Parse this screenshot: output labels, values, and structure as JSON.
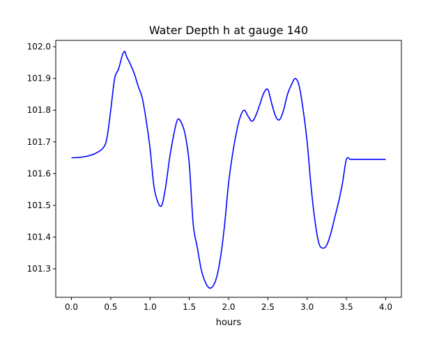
{
  "chart_data": {
    "type": "line",
    "title": "Water Depth h at gauge 140",
    "xlabel": "hours",
    "ylabel": "",
    "xlim": [
      -0.2,
      4.2
    ],
    "ylim": [
      101.21,
      102.02
    ],
    "xticks": [
      0.0,
      0.5,
      1.0,
      1.5,
      2.0,
      2.5,
      3.0,
      3.5,
      4.0
    ],
    "xtick_labels": [
      "0.0",
      "0.5",
      "1.0",
      "1.5",
      "2.0",
      "2.5",
      "3.0",
      "3.5",
      "4.0"
    ],
    "yticks": [
      101.3,
      101.4,
      101.5,
      101.6,
      101.7,
      101.8,
      101.9,
      102.0
    ],
    "ytick_labels": [
      "101.3",
      "101.4",
      "101.5",
      "101.6",
      "101.7",
      "101.8",
      "101.9",
      "102.0"
    ],
    "grid": false,
    "series": [
      {
        "color": "#0000ff",
        "x": [
          0.0,
          0.1,
          0.2,
          0.3,
          0.4,
          0.45,
          0.5,
          0.55,
          0.6,
          0.65,
          0.68,
          0.7,
          0.75,
          0.8,
          0.85,
          0.9,
          0.95,
          1.0,
          1.05,
          1.1,
          1.15,
          1.2,
          1.25,
          1.3,
          1.35,
          1.4,
          1.45,
          1.5,
          1.55,
          1.6,
          1.65,
          1.7,
          1.75,
          1.8,
          1.85,
          1.9,
          1.95,
          2.0,
          2.05,
          2.1,
          2.15,
          2.2,
          2.25,
          2.3,
          2.35,
          2.4,
          2.45,
          2.5,
          2.55,
          2.6,
          2.65,
          2.7,
          2.75,
          2.8,
          2.85,
          2.9,
          2.95,
          3.0,
          3.05,
          3.1,
          3.15,
          3.2,
          3.25,
          3.3,
          3.35,
          3.4,
          3.45,
          3.5,
          3.55,
          3.6,
          3.65,
          3.7,
          3.75,
          3.8,
          3.85,
          3.9,
          3.95,
          4.0
        ],
        "y": [
          101.65,
          101.651,
          101.655,
          101.663,
          101.68,
          101.71,
          101.8,
          101.9,
          101.93,
          101.975,
          101.985,
          101.97,
          101.945,
          101.915,
          101.875,
          101.84,
          101.77,
          101.68,
          101.56,
          101.51,
          101.5,
          101.56,
          101.65,
          101.72,
          101.77,
          101.76,
          101.72,
          101.63,
          101.44,
          101.37,
          101.3,
          101.26,
          101.24,
          101.245,
          101.275,
          101.34,
          101.44,
          101.57,
          101.66,
          101.73,
          101.78,
          101.8,
          101.78,
          101.765,
          101.785,
          101.82,
          101.855,
          101.865,
          101.82,
          101.78,
          101.77,
          101.8,
          101.85,
          101.88,
          101.9,
          101.875,
          101.8,
          101.7,
          101.56,
          101.45,
          101.38,
          101.365,
          101.375,
          101.41,
          101.46,
          101.51,
          101.57,
          101.645,
          101.645,
          101.645,
          101.645,
          101.645,
          101.645,
          101.645,
          101.645,
          101.645,
          101.645,
          101.645
        ]
      }
    ]
  }
}
